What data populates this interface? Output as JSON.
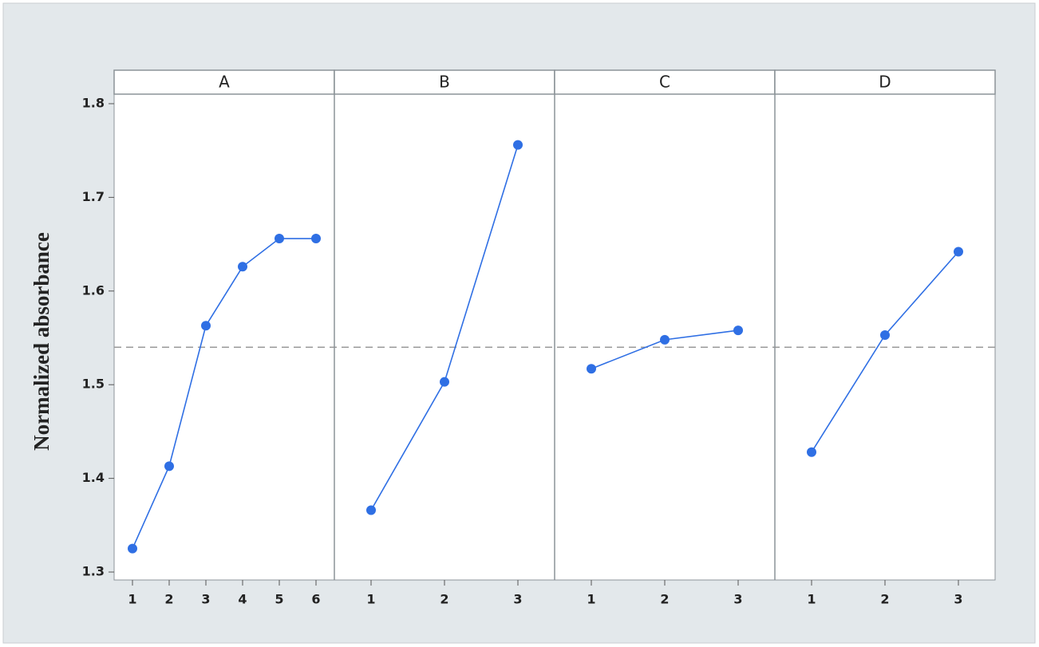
{
  "chart_data": {
    "type": "line",
    "y_label": "Normalized absorbance",
    "ylim": [
      1.2915,
      1.8102
    ],
    "yticks": [
      1.3,
      1.4,
      1.5,
      1.6,
      1.7,
      1.8
    ],
    "reference_line": 1.54,
    "color": "#2f6fe4",
    "panels": [
      {
        "title": "A",
        "categories": [
          "1",
          "2",
          "3",
          "4",
          "5",
          "6"
        ],
        "values": [
          1.325,
          1.413,
          1.563,
          1.626,
          1.656,
          1.656
        ]
      },
      {
        "title": "B",
        "categories": [
          "1",
          "2",
          "3"
        ],
        "values": [
          1.366,
          1.503,
          1.756
        ]
      },
      {
        "title": "C",
        "categories": [
          "1",
          "2",
          "3"
        ],
        "values": [
          1.517,
          1.548,
          1.558
        ]
      },
      {
        "title": "D",
        "categories": [
          "1",
          "2",
          "3"
        ],
        "values": [
          1.428,
          1.553,
          1.642
        ]
      }
    ]
  }
}
